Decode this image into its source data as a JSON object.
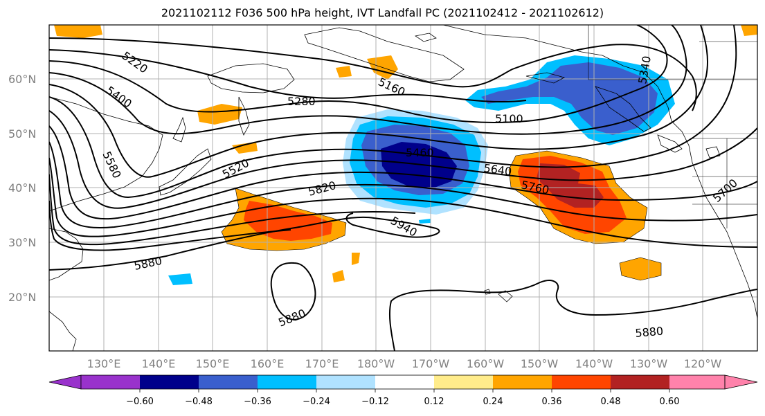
{
  "title": "2021102112 F036 500 hPa height, IVT Landfall PC (2021102412 - 2021102612)",
  "map": {
    "lat_labels": [
      "60°N",
      "50°N",
      "40°N",
      "30°N",
      "20°N"
    ],
    "lon_labels": [
      "130°E",
      "140°E",
      "150°E",
      "160°E",
      "170°E",
      "180°W",
      "170°W",
      "160°W",
      "150°W",
      "140°W",
      "130°W",
      "120°W"
    ],
    "contour_labels": [
      "5220",
      "5400",
      "5580",
      "5280",
      "5160",
      "5100",
      "5340",
      "5520",
      "5460",
      "5640",
      "5760",
      "5700",
      "5820",
      "5940",
      "5880",
      "5880",
      "5880"
    ],
    "frame_color": "#000000",
    "grid_color": "#b0b0b0"
  },
  "colorbar": {
    "tick_labels": [
      "−0.60",
      "−0.48",
      "−0.36",
      "−0.24",
      "−0.12",
      "0.12",
      "0.24",
      "0.36",
      "0.48",
      "0.60"
    ],
    "colors": [
      "#9932cc",
      "#00008b",
      "#3a5fcd",
      "#00bfff",
      "#b0e2ff",
      "#ffffff",
      "#ffec8b",
      "#ffa500",
      "#ff4500",
      "#b22222",
      "#ff82ab"
    ]
  }
}
